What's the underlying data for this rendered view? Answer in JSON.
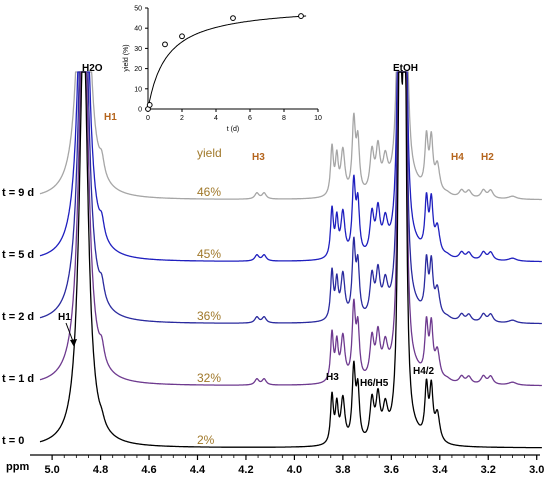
{
  "chart_data": [
    {
      "type": "line",
      "xlabel": "ppm",
      "xlim": [
        5.05,
        2.97
      ],
      "x_ticks": [
        "5.0",
        "4.8",
        "4.6",
        "4.4",
        "4.2",
        "4.0",
        "3.8",
        "3.6",
        "3.4",
        "3.2",
        "3.0"
      ],
      "series": [
        {
          "name": "t = 9 d",
          "yield": "46%",
          "color": "#a6a6a6",
          "offset": 4
        },
        {
          "name": "t = 5 d",
          "yield": "45%",
          "color": "#1f1fbf",
          "offset": 3
        },
        {
          "name": "t = 2 d",
          "yield": "36%",
          "color": "#2a2a9e",
          "offset": 2
        },
        {
          "name": "t = 1 d",
          "yield": "32%",
          "color": "#6e3a8f",
          "offset": 1
        },
        {
          "name": "t = 0",
          "yield": "2%",
          "color": "#000000",
          "offset": 0
        }
      ],
      "yield_header": "yield",
      "peak_labels_top": {
        "h2o": "H2O",
        "etoh": "EtOH",
        "h1": "H1",
        "h3": "H3",
        "h4": "H4",
        "h2": "H2"
      },
      "peak_labels_bottom": {
        "h1": "H1",
        "h3": "H3",
        "h6h5": "H6/H5",
        "h42": "H4/2"
      },
      "peaks": [
        {
          "ppm": 4.87,
          "label": "H2O"
        },
        {
          "ppm": 4.79,
          "label": "H1"
        },
        {
          "ppm": 4.14,
          "label": "H3"
        },
        {
          "ppm": 3.84,
          "label": "H3"
        },
        {
          "ppm": 3.75,
          "label": "H6/H5"
        },
        {
          "ppm": 3.66,
          "label": "H6/H5"
        },
        {
          "ppm": 3.565,
          "label": "EtOH"
        },
        {
          "ppm": 3.44,
          "label": "H4/2"
        },
        {
          "ppm": 3.3,
          "label": "H4"
        },
        {
          "ppm": 3.21,
          "label": "H2"
        }
      ]
    },
    {
      "type": "scatter",
      "xlabel": "t (d)",
      "ylabel": "yield (%)",
      "xlim": [
        0,
        10
      ],
      "ylim": [
        0,
        50
      ],
      "x_ticks": [
        "0",
        "2",
        "4",
        "6",
        "8",
        "10"
      ],
      "y_ticks": [
        "0",
        "10",
        "20",
        "30",
        "40",
        "50"
      ],
      "x": [
        0,
        0.1,
        1,
        2,
        5,
        9
      ],
      "y": [
        0,
        2,
        32,
        36,
        45,
        46
      ],
      "fit": {
        "ymax": 51.5,
        "k": 1.1
      }
    }
  ]
}
